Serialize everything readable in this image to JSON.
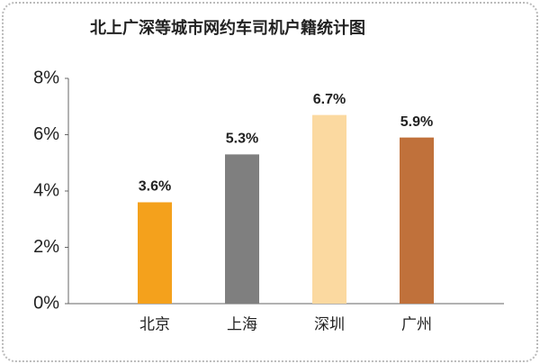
{
  "chart_data": {
    "type": "bar",
    "title": "北上广深等城市网约车司机户籍统计图",
    "categories": [
      "北京",
      "上海",
      "深圳",
      "广州"
    ],
    "values": [
      3.6,
      5.3,
      6.7,
      5.9
    ],
    "value_labels": [
      "3.6%",
      "5.3%",
      "6.7%",
      "5.9%"
    ],
    "colors": [
      "#f4a11c",
      "#7f7f7f",
      "#fbd9a0",
      "#c0713b"
    ],
    "ylim": [
      0,
      8
    ],
    "yticks": [
      {
        "value": 0,
        "label": "0%"
      },
      {
        "value": 2,
        "label": "2%"
      },
      {
        "value": 4,
        "label": "4%"
      },
      {
        "value": 6,
        "label": "6%"
      },
      {
        "value": 8,
        "label": "8%"
      }
    ],
    "grid": false
  }
}
